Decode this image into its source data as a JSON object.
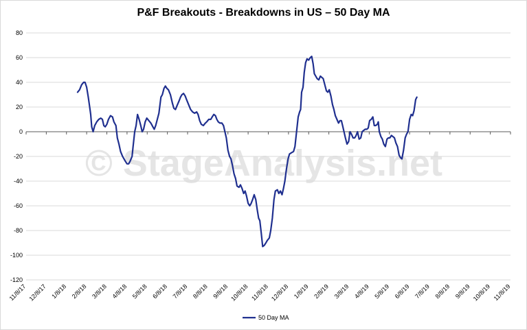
{
  "watermark": "© StageAnalysis.net",
  "chart_data": {
    "type": "line",
    "title": "P&F Breakouts - Breakdowns in US – 50 Day MA",
    "xlabel": "",
    "ylabel": "",
    "ylim": [
      -120,
      80
    ],
    "yticks": [
      80,
      60,
      40,
      20,
      0,
      -20,
      -40,
      -60,
      -80,
      -100,
      -120
    ],
    "x_tick_labels": [
      "11/8/17",
      "12/8/17",
      "1/8/18",
      "2/8/18",
      "3/8/18",
      "4/8/18",
      "5/8/18",
      "6/8/18",
      "7/8/18",
      "8/8/18",
      "9/8/18",
      "10/8/18",
      "11/8/18",
      "12/8/18",
      "1/8/19",
      "2/8/19",
      "3/8/19",
      "4/8/19",
      "5/8/19",
      "6/8/19",
      "7/8/19",
      "8/8/19",
      "9/8/19",
      "10/8/19",
      "11/8/19"
    ],
    "grid": "horizontal",
    "legend_position": "bottom",
    "series": [
      {
        "name": "50 Day MA",
        "color": "#1f2f8f",
        "points": [
          [
            2.55,
            32
          ],
          [
            2.65,
            34
          ],
          [
            2.75,
            38
          ],
          [
            2.85,
            40
          ],
          [
            2.92,
            40
          ],
          [
            3.0,
            36
          ],
          [
            3.08,
            28
          ],
          [
            3.15,
            20
          ],
          [
            3.2,
            14
          ],
          [
            3.25,
            4
          ],
          [
            3.32,
            0
          ],
          [
            3.4,
            5
          ],
          [
            3.5,
            8
          ],
          [
            3.6,
            10
          ],
          [
            3.7,
            11
          ],
          [
            3.78,
            10
          ],
          [
            3.85,
            5
          ],
          [
            3.92,
            4
          ],
          [
            4.0,
            6
          ],
          [
            4.08,
            10
          ],
          [
            4.18,
            13
          ],
          [
            4.28,
            12
          ],
          [
            4.35,
            8
          ],
          [
            4.45,
            5
          ],
          [
            4.52,
            -5
          ],
          [
            4.6,
            -10
          ],
          [
            4.68,
            -16
          ],
          [
            4.78,
            -20
          ],
          [
            4.85,
            -22
          ],
          [
            4.92,
            -24
          ],
          [
            5.0,
            -26
          ],
          [
            5.08,
            -26
          ],
          [
            5.15,
            -24
          ],
          [
            5.25,
            -20
          ],
          [
            5.3,
            -12
          ],
          [
            5.38,
            0
          ],
          [
            5.45,
            5
          ],
          [
            5.52,
            14
          ],
          [
            5.6,
            10
          ],
          [
            5.68,
            5
          ],
          [
            5.75,
            0
          ],
          [
            5.82,
            2
          ],
          [
            5.9,
            8
          ],
          [
            5.98,
            11
          ],
          [
            6.08,
            9
          ],
          [
            6.18,
            7
          ],
          [
            6.28,
            4
          ],
          [
            6.35,
            2
          ],
          [
            6.42,
            5
          ],
          [
            6.5,
            10
          ],
          [
            6.58,
            15
          ],
          [
            6.68,
            28
          ],
          [
            6.75,
            30
          ],
          [
            6.83,
            35
          ],
          [
            6.9,
            37
          ],
          [
            6.98,
            35
          ],
          [
            7.05,
            34
          ],
          [
            7.15,
            30
          ],
          [
            7.25,
            23
          ],
          [
            7.32,
            19
          ],
          [
            7.4,
            18
          ],
          [
            7.5,
            22
          ],
          [
            7.58,
            25
          ],
          [
            7.65,
            28
          ],
          [
            7.72,
            30
          ],
          [
            7.8,
            31
          ],
          [
            7.88,
            29
          ],
          [
            7.95,
            26
          ],
          [
            8.05,
            22
          ],
          [
            8.15,
            18
          ],
          [
            8.25,
            16
          ],
          [
            8.35,
            15
          ],
          [
            8.45,
            16
          ],
          [
            8.52,
            14
          ],
          [
            8.6,
            9
          ],
          [
            8.68,
            6
          ],
          [
            8.78,
            5
          ],
          [
            8.88,
            7
          ],
          [
            8.95,
            8
          ],
          [
            9.05,
            10
          ],
          [
            9.15,
            10
          ],
          [
            9.22,
            12
          ],
          [
            9.3,
            14
          ],
          [
            9.38,
            13
          ],
          [
            9.45,
            10
          ],
          [
            9.52,
            8
          ],
          [
            9.6,
            7
          ],
          [
            9.7,
            7
          ],
          [
            9.78,
            5
          ],
          [
            9.85,
            0
          ],
          [
            9.92,
            -5
          ],
          [
            10.0,
            -15
          ],
          [
            10.08,
            -20
          ],
          [
            10.15,
            -22
          ],
          [
            10.22,
            -27
          ],
          [
            10.3,
            -34
          ],
          [
            10.38,
            -38
          ],
          [
            10.45,
            -44
          ],
          [
            10.55,
            -45
          ],
          [
            10.62,
            -43
          ],
          [
            10.7,
            -46
          ],
          [
            10.78,
            -50
          ],
          [
            10.85,
            -48
          ],
          [
            10.92,
            -52
          ],
          [
            11.0,
            -58
          ],
          [
            11.08,
            -60
          ],
          [
            11.15,
            -58
          ],
          [
            11.22,
            -55
          ],
          [
            11.3,
            -51
          ],
          [
            11.38,
            -55
          ],
          [
            11.45,
            -63
          ],
          [
            11.52,
            -70
          ],
          [
            11.58,
            -72
          ],
          [
            11.65,
            -82
          ],
          [
            11.72,
            -93
          ],
          [
            11.8,
            -92
          ],
          [
            11.88,
            -90
          ],
          [
            11.95,
            -88
          ],
          [
            12.05,
            -86
          ],
          [
            12.12,
            -80
          ],
          [
            12.2,
            -70
          ],
          [
            12.28,
            -55
          ],
          [
            12.35,
            -48
          ],
          [
            12.45,
            -47
          ],
          [
            12.52,
            -50
          ],
          [
            12.6,
            -48
          ],
          [
            12.68,
            -51
          ],
          [
            12.75,
            -46
          ],
          [
            12.82,
            -40
          ],
          [
            12.9,
            -30
          ],
          [
            12.98,
            -22
          ],
          [
            13.05,
            -18
          ],
          [
            13.15,
            -17
          ],
          [
            13.25,
            -16
          ],
          [
            13.32,
            -12
          ],
          [
            13.4,
            0
          ],
          [
            13.48,
            12
          ],
          [
            13.55,
            16
          ],
          [
            13.6,
            18
          ],
          [
            13.65,
            32
          ],
          [
            13.72,
            36
          ],
          [
            13.78,
            48
          ],
          [
            13.85,
            56
          ],
          [
            13.92,
            59
          ],
          [
            14.0,
            58
          ],
          [
            14.08,
            60
          ],
          [
            14.15,
            61
          ],
          [
            14.22,
            55
          ],
          [
            14.28,
            47
          ],
          [
            14.35,
            45
          ],
          [
            14.42,
            43
          ],
          [
            14.5,
            42
          ],
          [
            14.58,
            45
          ],
          [
            14.65,
            44
          ],
          [
            14.72,
            43
          ],
          [
            14.8,
            38
          ],
          [
            14.88,
            33
          ],
          [
            14.95,
            32
          ],
          [
            15.02,
            34
          ],
          [
            15.1,
            29
          ],
          [
            15.18,
            22
          ],
          [
            15.25,
            18
          ],
          [
            15.32,
            13
          ],
          [
            15.4,
            10
          ],
          [
            15.48,
            7
          ],
          [
            15.55,
            9
          ],
          [
            15.62,
            9
          ],
          [
            15.68,
            5
          ],
          [
            15.75,
            0
          ],
          [
            15.82,
            -5
          ],
          [
            15.9,
            -10
          ],
          [
            15.98,
            -8
          ],
          [
            16.05,
            0
          ],
          [
            16.12,
            -2
          ],
          [
            16.2,
            -5
          ],
          [
            16.28,
            -5
          ],
          [
            16.35,
            -3
          ],
          [
            16.42,
            0
          ],
          [
            16.5,
            -6
          ],
          [
            16.58,
            -5
          ],
          [
            16.65,
            0
          ],
          [
            16.72,
            1
          ],
          [
            16.8,
            2
          ],
          [
            16.88,
            2
          ],
          [
            16.95,
            3
          ],
          [
            17.02,
            9
          ],
          [
            17.1,
            10
          ],
          [
            17.18,
            12
          ],
          [
            17.25,
            5
          ],
          [
            17.32,
            5
          ],
          [
            17.4,
            6
          ],
          [
            17.45,
            8
          ],
          [
            17.5,
            0
          ],
          [
            17.58,
            -4
          ],
          [
            17.65,
            -6
          ],
          [
            17.72,
            -10
          ],
          [
            17.8,
            -12
          ],
          [
            17.88,
            -6
          ],
          [
            17.95,
            -5
          ],
          [
            18.02,
            -5
          ],
          [
            18.1,
            -3
          ],
          [
            18.18,
            -4
          ],
          [
            18.25,
            -5
          ],
          [
            18.32,
            -9
          ],
          [
            18.4,
            -12
          ],
          [
            18.48,
            -19
          ],
          [
            18.55,
            -21
          ],
          [
            18.62,
            -22
          ],
          [
            18.7,
            -15
          ],
          [
            18.78,
            -5
          ],
          [
            18.85,
            -2
          ],
          [
            18.92,
            0
          ],
          [
            19.0,
            10
          ],
          [
            19.08,
            14
          ],
          [
            19.15,
            13
          ],
          [
            19.22,
            17
          ],
          [
            19.3,
            26
          ],
          [
            19.36,
            28
          ]
        ]
      }
    ]
  }
}
